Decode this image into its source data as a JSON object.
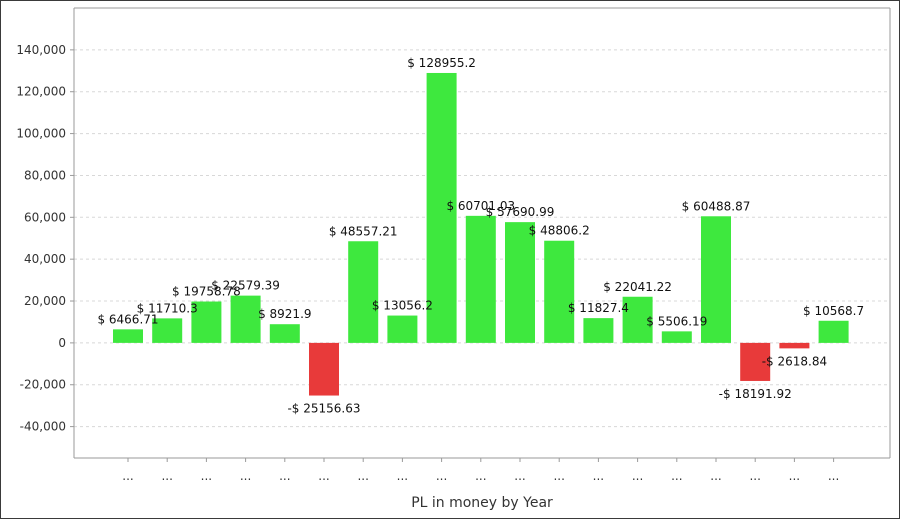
{
  "chart_data": {
    "type": "bar",
    "xlabel": "PL in money by Year",
    "categories": [
      "...",
      "...",
      "...",
      "...",
      "...",
      "...",
      "...",
      "...",
      "...",
      "...",
      "...",
      "...",
      "...",
      "...",
      "...",
      "...",
      "...",
      "...",
      "..."
    ],
    "values": [
      6466.71,
      11710.3,
      19758.78,
      22579.39,
      8921.9,
      -25156.63,
      48557.21,
      13056.2,
      128955.2,
      60701.03,
      57690.99,
      48806.2,
      11827.4,
      22041.22,
      5506.19,
      60488.87,
      -18191.92,
      -2618.84,
      10568.7
    ],
    "data_labels": [
      "$ 6466.71",
      "$ 11710.3",
      "$ 19758.78",
      "$ 22579.39",
      "$ 8921.9",
      "-$ 25156.63",
      "$ 48557.21",
      "$ 13056.2",
      "$ 128955.2",
      "$ 60701.03",
      "$ 57690.99",
      "$ 48806.2",
      "$ 11827.4",
      "$ 22041.22",
      "$ 5506.19",
      "$ 60488.87",
      "-$ 18191.92",
      "-$ 2618.84",
      "$ 10568.7"
    ],
    "y_ticks": [
      -40000,
      -20000,
      0,
      20000,
      40000,
      60000,
      80000,
      100000,
      120000,
      140000
    ],
    "y_tick_labels": [
      "-40,000",
      "-20,000",
      "0",
      "20,000",
      "40,000",
      "60,000",
      "80,000",
      "100,000",
      "120,000",
      "140,000"
    ],
    "ylim": [
      -55000,
      160000
    ],
    "grid": true,
    "colors": {
      "positive": "#3ee83e",
      "negative": "#e83a3a",
      "grid": "#d8d8d8",
      "axis": "#9a9a9a"
    }
  }
}
